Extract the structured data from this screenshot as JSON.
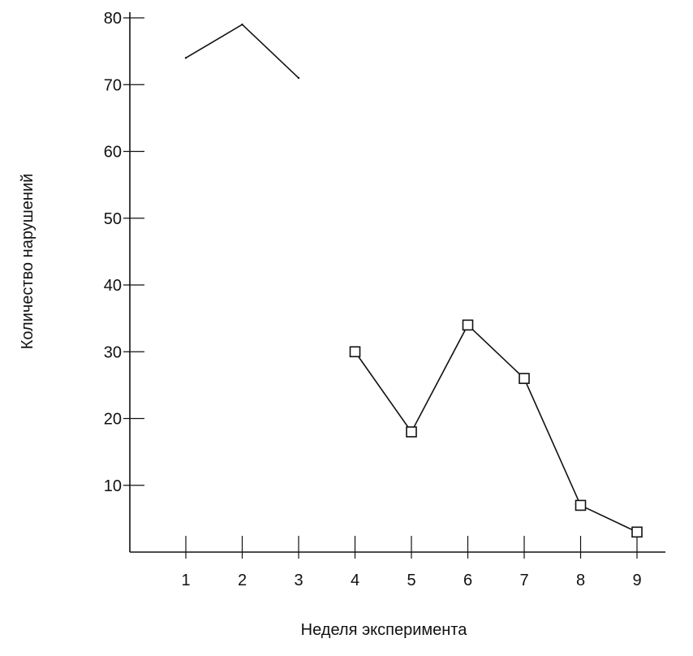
{
  "chart_data": {
    "type": "line",
    "xlabel": "Неделя эксперимента",
    "ylabel": "Количество нарушений",
    "x_ticks": [
      "1",
      "2",
      "3",
      "4",
      "5",
      "6",
      "7",
      "8",
      "9"
    ],
    "y_ticks": [
      "10",
      "20",
      "30",
      "40",
      "50",
      "60",
      "70",
      "80"
    ],
    "xlim": [
      0,
      10
    ],
    "ylim": [
      0,
      80
    ],
    "grid": false,
    "series": [
      {
        "x": [
          1,
          2,
          3
        ],
        "values": [
          74,
          79,
          71
        ],
        "marker": "none"
      },
      {
        "x": [
          4,
          5,
          6,
          7,
          8,
          9
        ],
        "values": [
          30,
          18,
          34,
          26,
          7,
          3
        ],
        "marker": "square"
      }
    ]
  }
}
